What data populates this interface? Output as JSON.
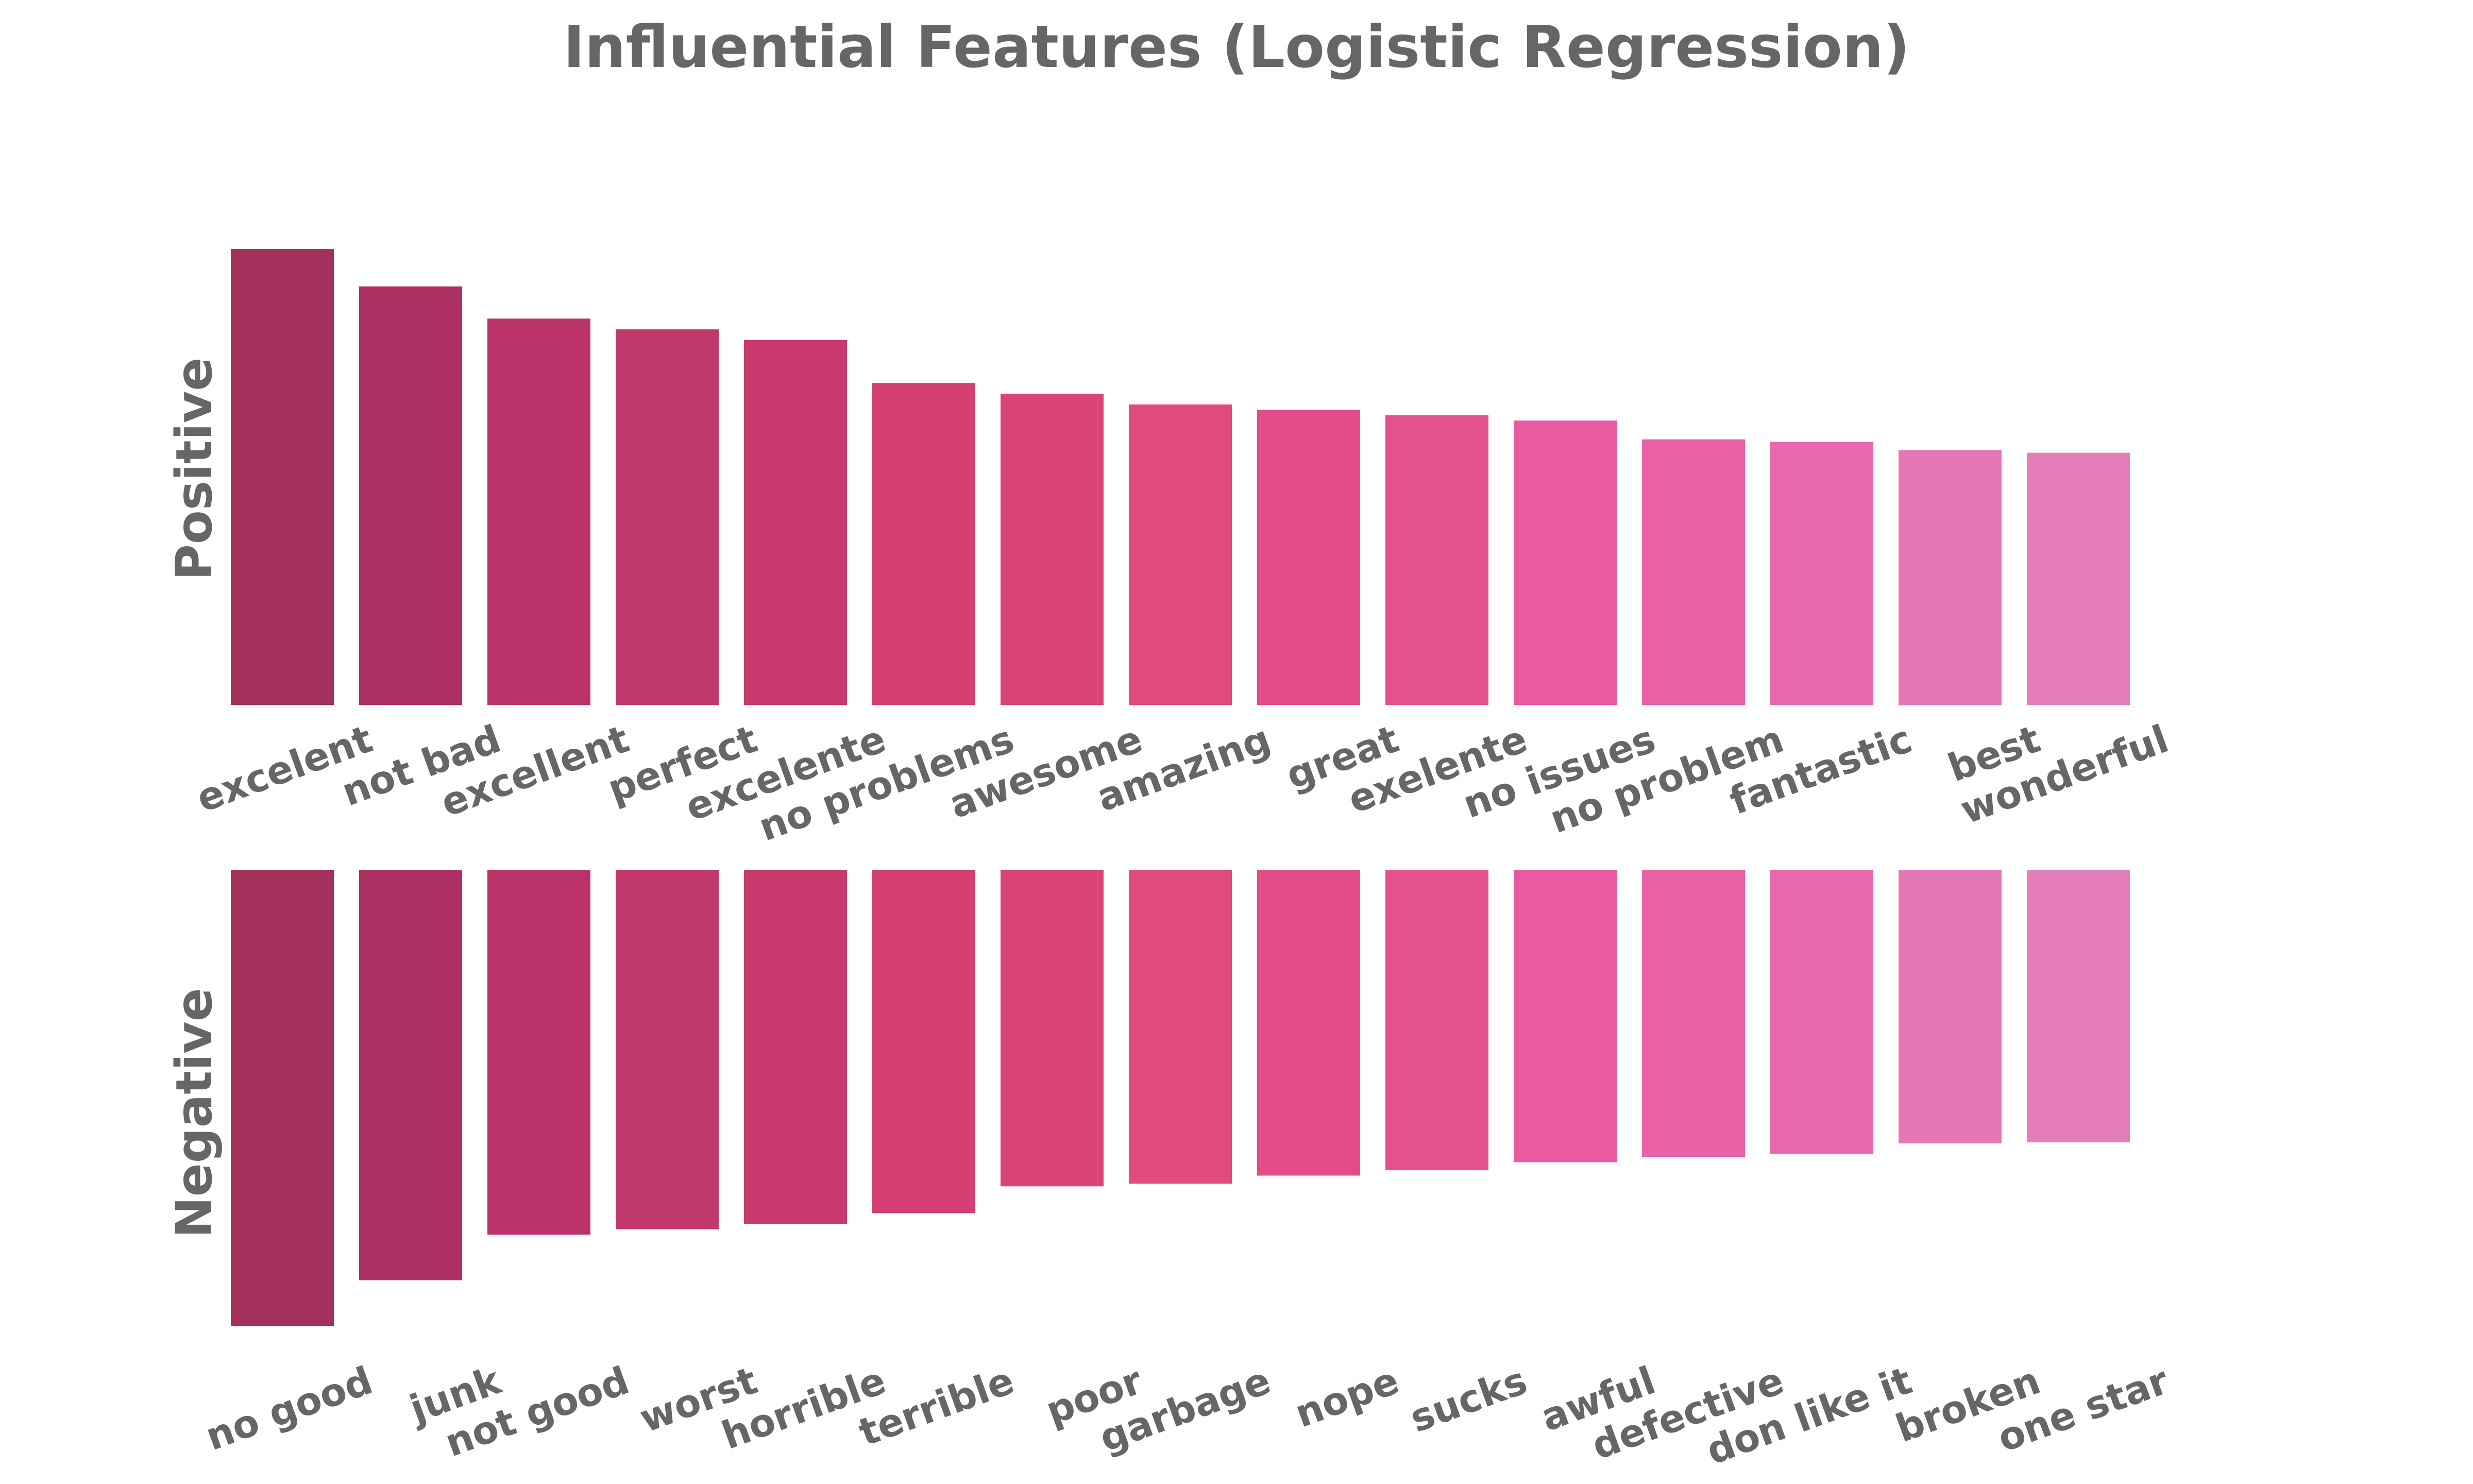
{
  "chart_data": {
    "type": "bar",
    "title": "Influential Features (Logistic Regression)",
    "panels": [
      {
        "name": "Positive",
        "ylabel": "Positive",
        "direction": "up",
        "categories": [
          "excelent",
          "not bad",
          "excellent",
          "perfect",
          "excelente",
          "no problems",
          "awesome",
          "amazing",
          "great",
          "exelente",
          "no issues",
          "no problem",
          "fantastic",
          "best",
          "wonderful"
        ],
        "values": [
          8.5,
          7.8,
          7.2,
          7.0,
          6.8,
          6.0,
          5.8,
          5.6,
          5.5,
          5.4,
          5.3,
          4.95,
          4.9,
          4.75,
          4.7
        ],
        "colors": [
          "#a4305c",
          "#ad3062",
          "#b93369",
          "#c1386d",
          "#c83a6e",
          "#d33f73",
          "#da4479",
          "#df4a7f",
          "#e24c87",
          "#e5518e",
          "#e859a0",
          "#e962a6",
          "#e76aad",
          "#e677b5",
          "#e47fbc"
        ]
      },
      {
        "name": "Negative",
        "ylabel": "Negative",
        "direction": "down",
        "categories": [
          "no good",
          "junk",
          "not good",
          "worst",
          "horrible",
          "terrible",
          "poor",
          "garbage",
          "nope",
          "sucks",
          "awful",
          "defective",
          "don like it",
          "broken",
          "one star"
        ],
        "values": [
          -8.5,
          -7.65,
          -6.8,
          -6.7,
          -6.6,
          -6.4,
          -5.9,
          -5.85,
          -5.7,
          -5.6,
          -5.45,
          -5.35,
          -5.3,
          -5.1,
          -5.08
        ],
        "colors": [
          "#a4305c",
          "#ad3062",
          "#b93369",
          "#c1386d",
          "#c83a6e",
          "#d33f73",
          "#da4479",
          "#df4a7f",
          "#e24c87",
          "#e5518e",
          "#e859a0",
          "#e962a6",
          "#e76aad",
          "#e677b5",
          "#e47fbc"
        ]
      }
    ],
    "grid": false,
    "legend": "none"
  }
}
